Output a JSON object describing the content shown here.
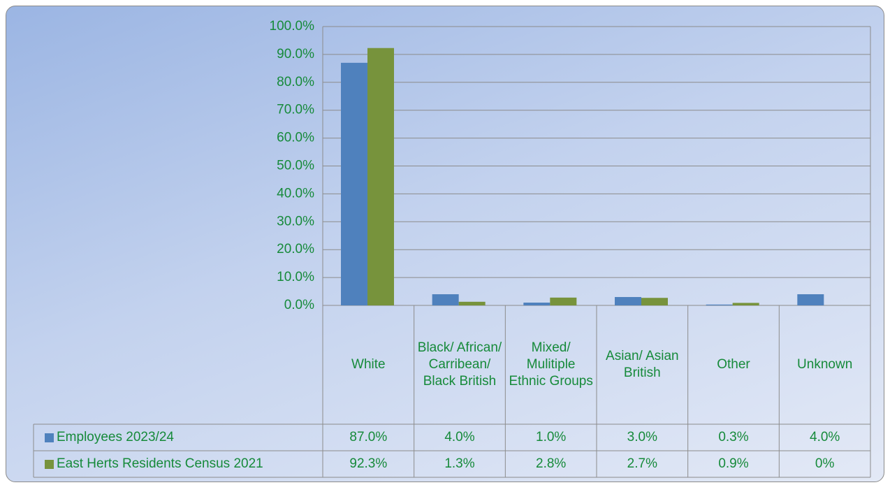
{
  "chart_data": {
    "type": "bar",
    "categories": [
      "White",
      "Black/ African/ Carribean/ Black British",
      "Mixed/ Mulitiple Ethnic Groups",
      "Asian/ Asian British",
      "Other",
      "Unknown"
    ],
    "series": [
      {
        "name": "Employees 2023/24",
        "color": "#4f81bd",
        "values": [
          87.0,
          4.0,
          1.0,
          3.0,
          0.3,
          4.0
        ],
        "value_labels": [
          "87.0%",
          "4.0%",
          "1.0%",
          "3.0%",
          "0.3%",
          "4.0%"
        ]
      },
      {
        "name": "East Herts Residents Census 2021",
        "color": "#77933c",
        "values": [
          92.3,
          1.3,
          2.8,
          2.7,
          0.9,
          0
        ],
        "value_labels": [
          "92.3%",
          "1.3%",
          "2.8%",
          "2.7%",
          "0.9%",
          "0%"
        ]
      }
    ],
    "ylim": [
      0,
      100
    ],
    "yticks": [
      {
        "value": 0,
        "label": "0.0%"
      },
      {
        "value": 10,
        "label": "10.0%"
      },
      {
        "value": 20,
        "label": "20.0%"
      },
      {
        "value": 30,
        "label": "30.0%"
      },
      {
        "value": 40,
        "label": "40.0%"
      },
      {
        "value": 50,
        "label": "50.0%"
      },
      {
        "value": 60,
        "label": "60.0%"
      },
      {
        "value": 70,
        "label": "70.0%"
      },
      {
        "value": 80,
        "label": "80.0%"
      },
      {
        "value": 90,
        "label": "90.0%"
      },
      {
        "value": 100,
        "label": "100.0%"
      }
    ],
    "grid": true
  }
}
